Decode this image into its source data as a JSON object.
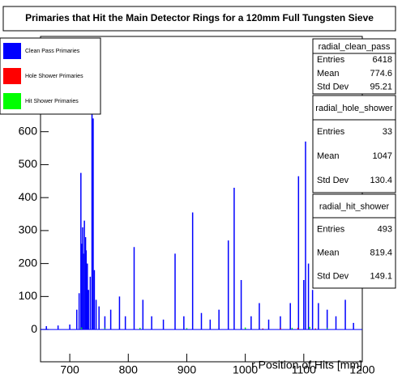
{
  "chart_data": {
    "type": "bar",
    "title": "Primaries that Hit the Main Detector Rings for a 120mm Full Tungsten Sieve",
    "x_label": "r Position of Hits [mm]",
    "xlim": [
      650,
      1200
    ],
    "xticks": [
      700,
      800,
      900,
      1000,
      1100,
      1200
    ],
    "ylim": [
      -98,
      889
    ],
    "yticks": [
      0,
      100,
      200,
      300,
      400,
      500,
      600
    ],
    "legend": "top-left",
    "series": [
      {
        "name": "Clean Pass Primaries",
        "color": "#0000ff",
        "x": [
          660,
          680,
          700,
          712,
          716,
          719,
          721,
          722,
          724,
          725,
          727,
          728,
          730,
          732,
          735,
          738,
          740,
          742,
          745,
          750,
          760,
          770,
          785,
          795,
          810,
          825,
          840,
          860,
          880,
          895,
          910,
          925,
          940,
          955,
          971,
          981,
          993,
          1010,
          1024,
          1040,
          1060,
          1077,
          1091,
          1100,
          1103,
          1108,
          1115,
          1125,
          1140,
          1155,
          1171,
          1185
        ],
        "values": [
          10,
          12,
          15,
          60,
          110,
          475,
          260,
          310,
          230,
          330,
          280,
          240,
          200,
          120,
          160,
          745,
          640,
          180,
          90,
          70,
          40,
          60,
          100,
          40,
          250,
          90,
          40,
          30,
          230,
          40,
          355,
          50,
          30,
          60,
          270,
          430,
          150,
          40,
          80,
          30,
          40,
          80,
          465,
          150,
          570,
          200,
          120,
          80,
          60,
          40,
          90,
          20
        ]
      },
      {
        "name": "Hole Shower Primaries",
        "color": "#ff0000",
        "x": [
          1030,
          1060,
          1090,
          1120
        ],
        "values": [
          3,
          4,
          5,
          3
        ]
      },
      {
        "name": "Hit Shower Primaries",
        "color": "#00ff00",
        "x": [
          720,
          760,
          820,
          900,
          1000,
          1080,
          1110,
          1140
        ],
        "values": [
          6,
          4,
          5,
          4,
          6,
          5,
          8,
          4
        ]
      }
    ]
  },
  "stats": [
    {
      "name": "radial_clean_pass",
      "rows": [
        [
          "Entries",
          6418
        ],
        [
          "Mean",
          774.6
        ],
        [
          "Std Dev",
          95.21
        ]
      ]
    },
    {
      "name": "radial_hole_shower",
      "rows": [
        [
          "Entries",
          33
        ],
        [
          "Mean",
          1047
        ],
        [
          "Std Dev",
          130.4
        ]
      ]
    },
    {
      "name": "radial_hit_shower",
      "rows": [
        [
          "Entries",
          493
        ],
        [
          "Mean",
          819.4
        ],
        [
          "Std Dev",
          149.1
        ]
      ]
    }
  ]
}
